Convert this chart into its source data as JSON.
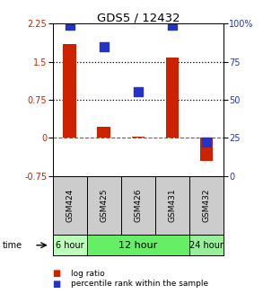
{
  "title": "GDS5 / 12432",
  "samples": [
    "GSM424",
    "GSM425",
    "GSM426",
    "GSM431",
    "GSM432"
  ],
  "log_ratio": [
    1.85,
    0.22,
    0.03,
    1.58,
    -0.45
  ],
  "percentile_rank": [
    99,
    85,
    55,
    99,
    22
  ],
  "ylim_left": [
    -0.75,
    2.25
  ],
  "ylim_right": [
    0,
    100
  ],
  "yticks_left": [
    -0.75,
    0,
    0.75,
    1.5,
    2.25
  ],
  "yticks_right": [
    0,
    25,
    50,
    75,
    100
  ],
  "bar_color": "#cc2200",
  "dot_color": "#2233cc",
  "bar_width": 0.38,
  "dot_size": 45,
  "background_color": "#ffffff",
  "label_log_ratio": "log ratio",
  "label_percentile": "percentile rank within the sample",
  "time_label": "time",
  "sample_bg": "#cccccc",
  "time_configs": [
    {
      "label": "6 hour",
      "start": 0,
      "end": 1,
      "color": "#bbffbb",
      "fontsize": 7
    },
    {
      "label": "12 hour",
      "start": 1,
      "end": 4,
      "color": "#66ee66",
      "fontsize": 8
    },
    {
      "label": "24 hour",
      "start": 4,
      "end": 5,
      "color": "#99ee99",
      "fontsize": 7
    }
  ]
}
